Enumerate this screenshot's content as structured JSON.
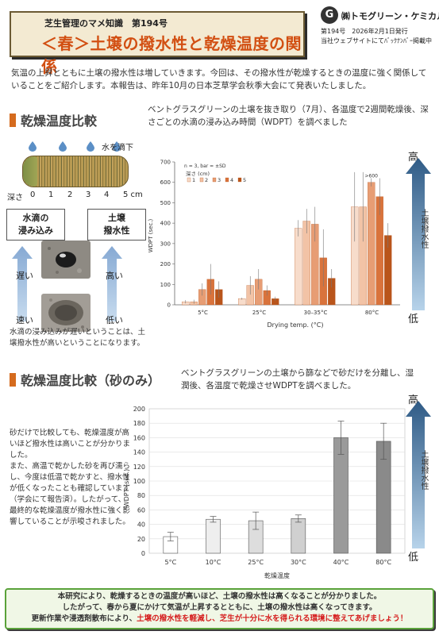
{
  "header": {
    "series": "芝生管理のマメ知識　第194号",
    "title": "＜春＞土壌の撥水性と乾燥温度の関係",
    "brand_mark": "G",
    "brand_name": "㈱トモグリーン・ケミカル",
    "issue_line": "第194号　2026年2月1日発行",
    "website_line": "当社ウェブサイトにてﾊﾞｯｸﾅﾝﾊﾞｰ掲載中"
  },
  "intro": "気温の上昇とともに土壌の撥水性は増していきます。今回は、その撥水性が乾燥するときの温度に強く関係していることをご紹介します。本報告は、昨年10月の日本芝草学会秋季大会にて発表いたしました。",
  "section1": {
    "heading": "乾燥温度比較",
    "description": "ベントグラスグリーンの土壌を抜き取り（7月）、各温度で2週間乾燥後、深さごとの水滴の浸み込み時間（WDPT）を調べました",
    "drop_label": "水を滴下",
    "depth_label": "深さ",
    "depth_ticks": [
      "0",
      "1",
      "2",
      "3",
      "4",
      "5 cm"
    ],
    "box_left": "水滴の\n浸み込み",
    "box_right": "土壌\n撥水性",
    "slow": "遅い",
    "fast": "速い",
    "high": "高い",
    "low": "低い",
    "caption": "水滴の浸み込みが遅いということは、土壌撥水性が高いということになります。",
    "arrow_top": "高",
    "arrow_bottom": "低",
    "arrow_label": "土壌撥水性"
  },
  "section2": {
    "heading": "乾燥温度比較（砂のみ）",
    "description": "ベントグラスグリーンの土壌から篩などで砂だけを分離し、湿潤後、各温度で乾燥させWDPTを調べました。",
    "body": "砂だけで比較しても、乾燥温度が高いほど撥水性は高いことが分かりました。\nまた、高温で乾かした砂を再び濡らし、今度は低温で乾かすと、撥水性が低くなったことも確認しています（学会にて報告済）。したがって、最終的な乾燥温度が撥水性に強く影響していることが示唆されました。",
    "arrow_top": "高",
    "arrow_bottom": "低",
    "arrow_label": "土壌撥水性"
  },
  "conclusion": {
    "line1": "本研究により、乾燥するときの温度が高いほど、土壌の撥水性は高くなることが分かりました。",
    "line2": "したがって、春から夏にかけて気温が上昇するとともに、土壌の撥水性は高くなってきます。",
    "line3_a": "更新作業や浸透剤散布により、",
    "line3_red": "土壌の撥水性を軽減し、芝生が十分に水を得られる環境に整えてあげましょう！"
  },
  "colors": {
    "accent": "#d56b1e",
    "title_red": "#d24f12",
    "arrow_dark": "#2f5b86",
    "arrow_light": "#9ec3e2"
  },
  "chart_data": [
    {
      "type": "bar",
      "annotation": "n = 3, bar = ±SD",
      "legend_title": "深さ (cm)",
      "categories": [
        "5°C",
        "25°C",
        "30–35°C",
        "80°C"
      ],
      "series": [
        {
          "name": "1",
          "values": [
            15,
            30,
            375,
            480
          ],
          "err": [
            8,
            5,
            40,
            170
          ],
          "color": "#f7dccb"
        },
        {
          "name": "2",
          "values": [
            15,
            95,
            410,
            480
          ],
          "err": [
            10,
            45,
            60,
            170
          ],
          "color": "#f2c3a6"
        },
        {
          "name": "3",
          "values": [
            75,
            125,
            395,
            600
          ],
          "err": [
            30,
            50,
            85,
            20
          ],
          "color": "#e79d74"
        },
        {
          "name": "4",
          "values": [
            125,
            70,
            230,
            530
          ],
          "err": [
            75,
            25,
            140,
            90
          ],
          "color": "#d9733c"
        },
        {
          "name": "5",
          "values": [
            75,
            30,
            130,
            340
          ],
          "err": [
            40,
            10,
            45,
            60
          ],
          "color": "#b9551b"
        }
      ],
      "overflow_label": ">600",
      "xlabel": "Drying temp. (°C)",
      "ylabel": "WDPT (sec.)",
      "yticks": [
        "0",
        "100",
        "200",
        "300",
        "400",
        "500",
        "600",
        "700"
      ],
      "ylim": [
        0,
        700
      ]
    },
    {
      "type": "bar",
      "categories": [
        "5°C",
        "10°C",
        "25°C",
        "30°C",
        "40°C",
        "80°C"
      ],
      "values": [
        23,
        47,
        45,
        48,
        160,
        155
      ],
      "err": [
        6,
        4,
        12,
        5,
        23,
        25
      ],
      "colors": [
        "#ffffff",
        "#eeeeee",
        "#dddddd",
        "#d0d0d0",
        "#9a9a9a",
        "#8a8a8a"
      ],
      "xlabel": "乾燥温度",
      "ylabel": "WDPT (sec.)",
      "yticks": [
        "0",
        "20",
        "40",
        "60",
        "80",
        "100",
        "120",
        "140",
        "160",
        "180",
        "200"
      ],
      "ylim": [
        0,
        200
      ]
    }
  ]
}
